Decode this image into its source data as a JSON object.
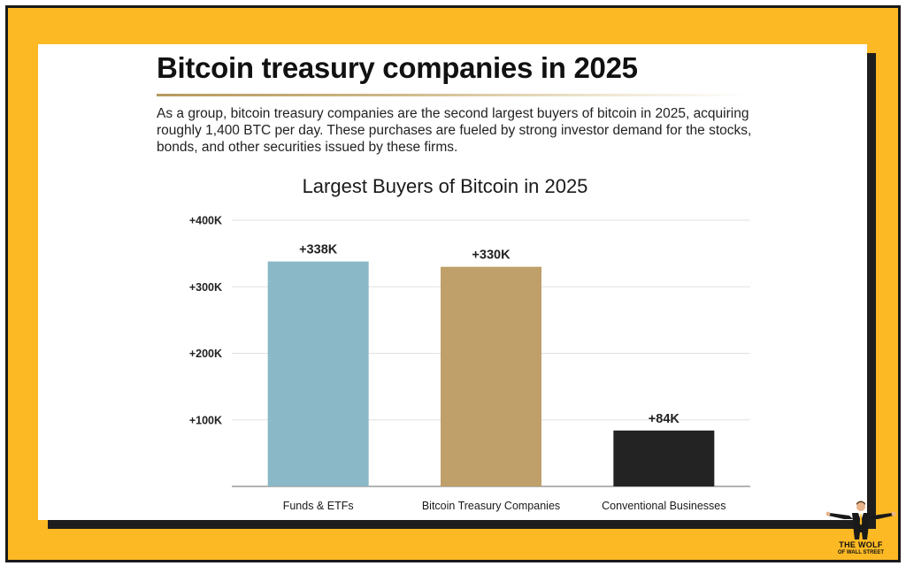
{
  "page": {
    "title": "Bitcoin treasury companies in 2025",
    "description": "As a group, bitcoin treasury companies are the second largest buyers of bitcoin in 2025, acquiring roughly 1,400 BTC per day. These purchases are fueled by strong investor demand for the stocks, bonds, and other securities issued by these firms."
  },
  "colors": {
    "frame": "#FDB924",
    "funds_etfs": "#8AB8C6",
    "treasury_companies": "#BFA06A",
    "conventional_businesses": "#232323"
  },
  "logo": {
    "line1": "THE WOLF",
    "line2": "OF WALL STREET",
    "icon": "wolf-figure-arms-outstretched-icon"
  },
  "chart_data": {
    "type": "bar",
    "title": "Largest Buyers of Bitcoin in 2025",
    "xlabel": "",
    "ylabel": "",
    "categories": [
      "Funds & ETFs",
      "Bitcoin Treasury Companies",
      "Conventional Businesses"
    ],
    "values": [
      338000,
      330000,
      84000
    ],
    "data_labels": [
      "+338K",
      "+330K",
      "+84K"
    ],
    "bar_colors": [
      "#8AB8C6",
      "#BFA06A",
      "#232323"
    ],
    "y_ticks": [
      100000,
      200000,
      300000,
      400000
    ],
    "y_tick_labels": [
      "+100K",
      "+200K",
      "+300K",
      "+400K"
    ],
    "ylim": [
      0,
      400000
    ],
    "grid": true,
    "legend": "none"
  }
}
